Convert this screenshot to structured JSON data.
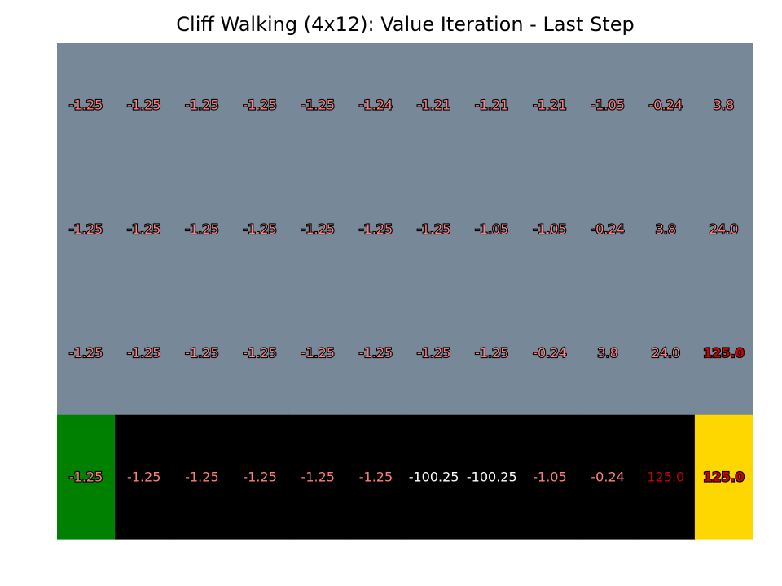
{
  "chart_data": {
    "type": "heatmap",
    "title": "Cliff Walking (4x12): Value Iteration - Last Step",
    "rows": 4,
    "cols": 12,
    "values": [
      [
        -1.25,
        -1.25,
        -1.25,
        -1.25,
        -1.25,
        -1.24,
        -1.21,
        -1.21,
        -1.21,
        -1.05,
        -0.24,
        3.8
      ],
      [
        -1.25,
        -1.25,
        -1.25,
        -1.25,
        -1.25,
        -1.25,
        -1.25,
        -1.05,
        -1.05,
        -0.24,
        3.8,
        24.0
      ],
      [
        -1.25,
        -1.25,
        -1.25,
        -1.25,
        -1.25,
        -1.25,
        -1.25,
        -1.25,
        -0.24,
        3.8,
        24.0,
        125.0
      ],
      [
        -1.25,
        -1.25,
        -1.25,
        -1.25,
        -1.25,
        -1.25,
        -100.25,
        -100.25,
        -1.05,
        -0.24,
        125.0,
        125.0
      ]
    ],
    "labels": [
      [
        "-1.25",
        "-1.25",
        "-1.25",
        "-1.25",
        "-1.25",
        "-1.24",
        "-1.21",
        "-1.21",
        "-1.21",
        "-1.05",
        "-0.24",
        "3.8"
      ],
      [
        "-1.25",
        "-1.25",
        "-1.25",
        "-1.25",
        "-1.25",
        "-1.25",
        "-1.25",
        "-1.05",
        "-1.05",
        "-0.24",
        "3.8",
        "24.0"
      ],
      [
        "-1.25",
        "-1.25",
        "-1.25",
        "-1.25",
        "-1.25",
        "-1.25",
        "-1.25",
        "-1.25",
        "-0.24",
        "3.8",
        "24.0",
        "125.0"
      ],
      [
        "-1.25",
        "-1.25",
        "-1.25",
        "-1.25",
        "-1.25",
        "-1.25",
        "-100.25",
        "-100.25",
        "-1.05",
        "-0.24",
        "125.0",
        "125.0"
      ]
    ],
    "cell_colors": [
      [
        "#778899",
        "#778899",
        "#778899",
        "#778899",
        "#778899",
        "#778899",
        "#778899",
        "#778899",
        "#778899",
        "#778899",
        "#778899",
        "#778899"
      ],
      [
        "#778899",
        "#778899",
        "#778899",
        "#778899",
        "#778899",
        "#778899",
        "#778899",
        "#778899",
        "#778899",
        "#778899",
        "#778899",
        "#778899"
      ],
      [
        "#778899",
        "#778899",
        "#778899",
        "#778899",
        "#778899",
        "#778899",
        "#778899",
        "#778899",
        "#778899",
        "#778899",
        "#778899",
        "#778899"
      ],
      [
        "#008000",
        "#000000",
        "#000000",
        "#000000",
        "#000000",
        "#000000",
        "#000000",
        "#000000",
        "#000000",
        "#000000",
        "#000000",
        "#ffd700"
      ]
    ],
    "text_styles": [
      [
        "outline",
        "outline",
        "outline",
        "outline",
        "outline",
        "outline",
        "outline",
        "outline",
        "outline",
        "outline",
        "outline",
        "outline"
      ],
      [
        "outline",
        "outline",
        "outline",
        "outline",
        "outline",
        "outline",
        "outline",
        "outline",
        "outline",
        "outline",
        "outline",
        "outline"
      ],
      [
        "outline",
        "outline",
        "outline",
        "outline",
        "outline",
        "outline",
        "outline",
        "outline",
        "outline",
        "outline",
        "outline",
        "outline-strong"
      ],
      [
        "outline",
        "plain",
        "plain",
        "plain",
        "plain",
        "plain",
        "white",
        "white",
        "plain",
        "plain",
        "red",
        "outline-strong"
      ]
    ],
    "colors": {
      "grid_state": "#778899",
      "start": "#008000",
      "cliff": "#000000",
      "goal": "#ffd700",
      "value_text": "#ff7f7f",
      "high_value_text": "#cc0000",
      "cliff_value_text": "#ffffff"
    },
    "grid": false,
    "axes_visible": false
  }
}
